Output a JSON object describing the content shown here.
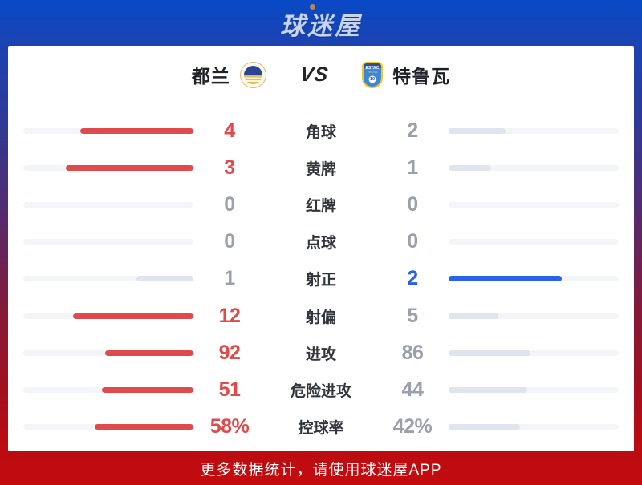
{
  "header": {
    "logo_text": "球迷屋"
  },
  "match": {
    "home_team": "都兰",
    "away_team": "特鲁瓦",
    "vs_label": "VS",
    "away_badge": {
      "line1": "ESTAC",
      "line2": "TROYES",
      "number": "10"
    }
  },
  "colors": {
    "home_accent": "#df4b4c",
    "away_accent": "#2b61e8",
    "muted_fill": "#dfe5ee",
    "muted_text": "#9aa0ac",
    "bar_track": "#f4f5f8"
  },
  "stats": {
    "rows": [
      {
        "label": "角球",
        "home": "4",
        "away": "2",
        "home_style": "accent",
        "away_style": "muted"
      },
      {
        "label": "黄牌",
        "home": "3",
        "away": "1",
        "home_style": "accent",
        "away_style": "muted"
      },
      {
        "label": "红牌",
        "home": "0",
        "away": "0",
        "home_style": "muted",
        "away_style": "muted"
      },
      {
        "label": "点球",
        "home": "0",
        "away": "0",
        "home_style": "muted",
        "away_style": "muted"
      },
      {
        "label": "射正",
        "home": "1",
        "away": "2",
        "home_style": "muted",
        "away_style": "accent"
      },
      {
        "label": "射偏",
        "home": "12",
        "away": "5",
        "home_style": "accent",
        "away_style": "muted"
      },
      {
        "label": "进攻",
        "home": "92",
        "away": "86",
        "home_style": "accent",
        "away_style": "muted"
      },
      {
        "label": "危险进攻",
        "home": "51",
        "away": "44",
        "home_style": "accent",
        "away_style": "muted"
      },
      {
        "label": "控球率",
        "home": "58%",
        "away": "42%",
        "home_style": "accent",
        "away_style": "muted"
      }
    ]
  },
  "chart_data": {
    "type": "table",
    "title": "都兰 VS 特鲁瓦",
    "categories": [
      "角球",
      "黄牌",
      "红牌",
      "点球",
      "射正",
      "射偏",
      "进攻",
      "危险进攻",
      "控球率"
    ],
    "series": [
      {
        "name": "都兰",
        "values": [
          4,
          3,
          0,
          0,
          1,
          12,
          92,
          51,
          58
        ]
      },
      {
        "name": "特鲁瓦",
        "values": [
          2,
          1,
          0,
          0,
          2,
          5,
          86,
          44,
          42
        ]
      }
    ],
    "legend_position": "top",
    "note": "bars grow outward from center; share of each bar = value / (home+away)"
  },
  "footer": {
    "banner_text": "更多数据统计，请使用球迷屋APP"
  }
}
